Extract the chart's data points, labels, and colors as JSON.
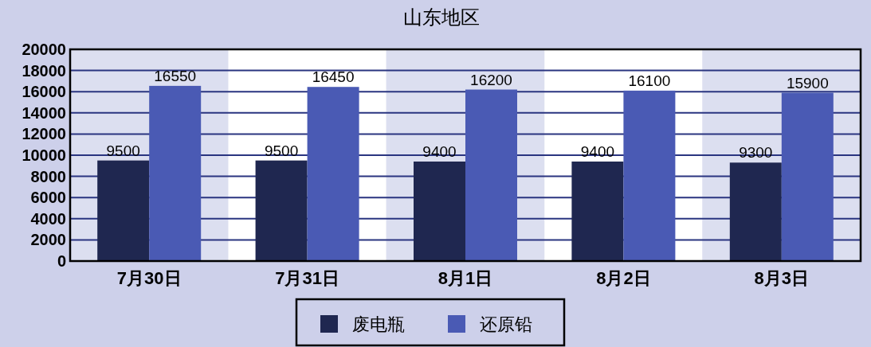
{
  "chart_data": {
    "type": "bar",
    "title": "山东地区",
    "categories": [
      "7月30日",
      "7月31日",
      "8月1日",
      "8月2日",
      "8月3日"
    ],
    "series": [
      {
        "name": "废电瓶",
        "color": "#1f2750",
        "values": [
          9500,
          9500,
          9400,
          9400,
          9300
        ]
      },
      {
        "name": "还原铅",
        "color": "#4a5ab4",
        "values": [
          16550,
          16450,
          16200,
          16100,
          15900
        ]
      }
    ],
    "ylim": [
      0,
      20000
    ],
    "yticks": [
      0,
      2000,
      4000,
      6000,
      8000,
      10000,
      12000,
      14000,
      16000,
      18000,
      20000
    ],
    "grid": "y",
    "legend": "bottom",
    "data_labels": true
  }
}
